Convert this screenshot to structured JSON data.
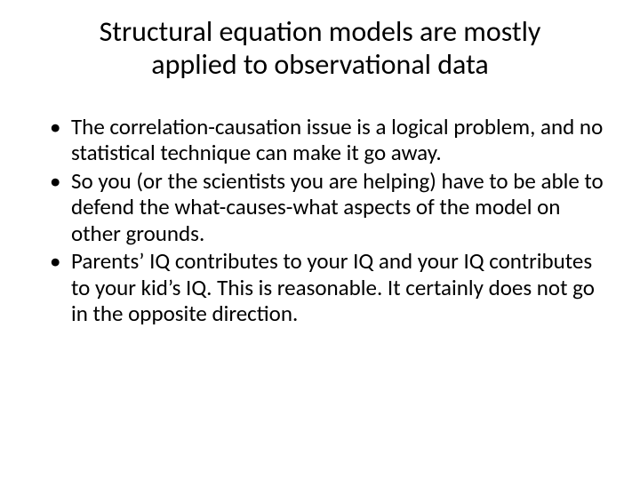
{
  "slide": {
    "title": "Structural equation models are mostly applied to observational data",
    "bullets": [
      "The correlation-causation issue is a logical problem, and no statistical technique can make it go away.",
      "So you (or the scientists you are helping) have to be able to defend the what-causes-what aspects of the model on other grounds.",
      "Parents’ IQ contributes to your IQ and your IQ contributes to your kid’s IQ. This is reasonable. It certainly does not go in the opposite direction."
    ]
  },
  "style": {
    "background_color": "#ffffff",
    "text_color": "#000000",
    "title_fontsize": 32,
    "body_fontsize": 25,
    "font_family": "Calibri"
  }
}
